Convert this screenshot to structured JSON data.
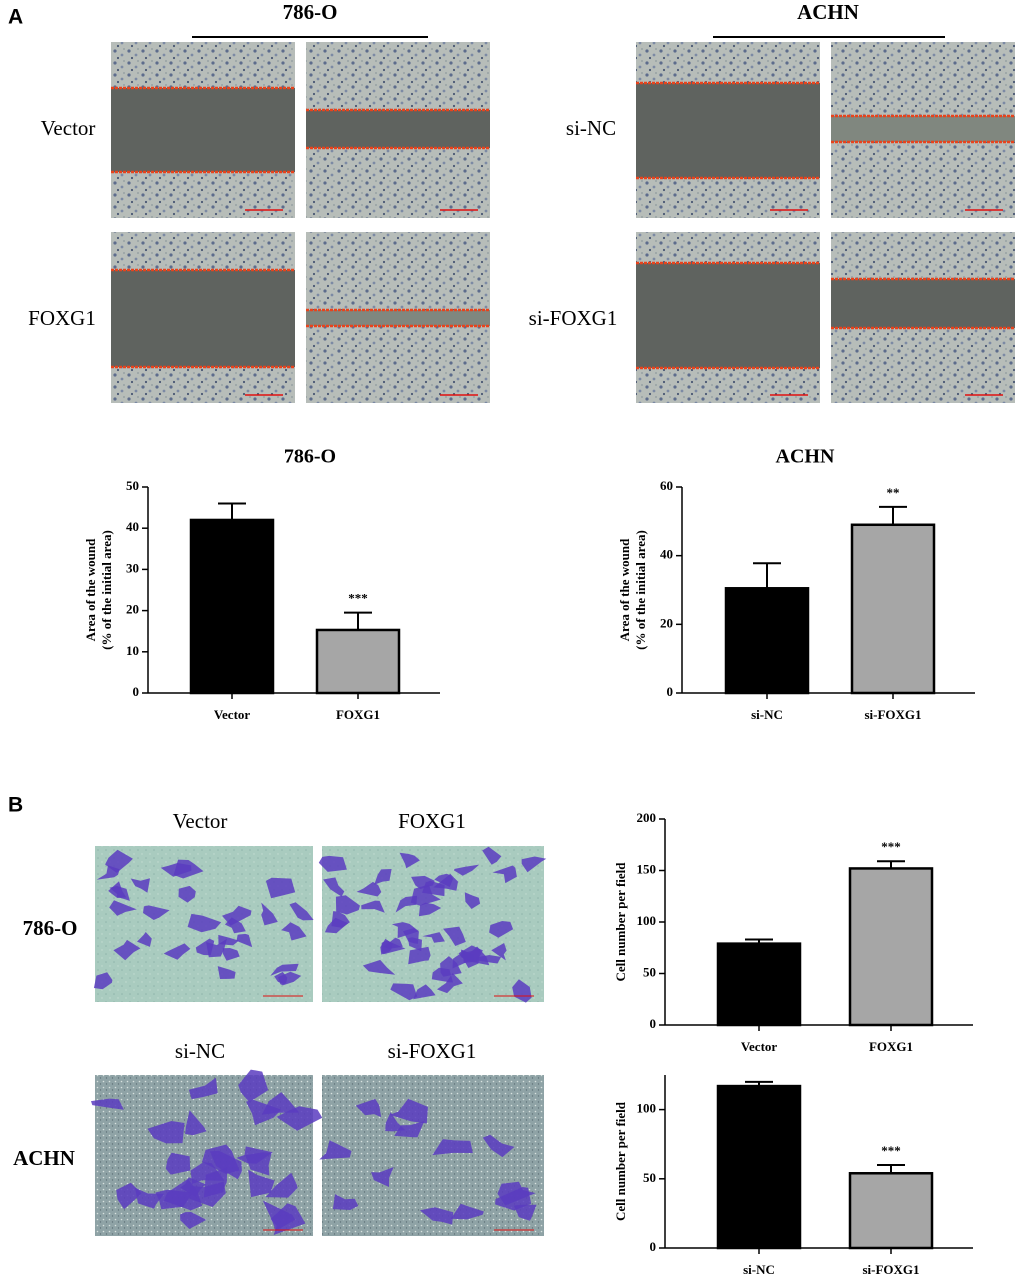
{
  "figure": {
    "panel_a": "A",
    "panel_b": "B",
    "a_headers": [
      "786-O",
      "ACHN"
    ],
    "a_rows": [
      "Vector",
      "FOXG1",
      "si-NC",
      "si-FOXG1"
    ],
    "b_columns": [
      "Vector",
      "FOXG1",
      "si-NC",
      "si-FOXG1"
    ],
    "b_rows": [
      "786-O",
      "ACHN"
    ]
  },
  "chart_data": [
    {
      "type": "bar",
      "title": "786-O",
      "ylabel": [
        "Area of the wound",
        "(% of the initial area)"
      ],
      "categories": [
        "Vector",
        "FOXG1"
      ],
      "values": [
        42,
        15.3
      ],
      "errors": [
        4,
        4.2
      ],
      "colors": [
        "#000000",
        "#a6a6a6"
      ],
      "annotations": [
        {
          "category": "FOXG1",
          "text": "***"
        }
      ],
      "ylim": [
        0,
        50
      ],
      "yticks": [
        0,
        10,
        20,
        30,
        40,
        50
      ]
    },
    {
      "type": "bar",
      "title": "ACHN",
      "ylabel": [
        "Area of the wound",
        "(% of the initial area)"
      ],
      "categories": [
        "si-NC",
        "si-FOXG1"
      ],
      "values": [
        30.5,
        49
      ],
      "errors": [
        7.3,
        5.2
      ],
      "colors": [
        "#000000",
        "#a6a6a6"
      ],
      "annotations": [
        {
          "category": "si-FOXG1",
          "text": "**"
        }
      ],
      "ylim": [
        0,
        60
      ],
      "yticks": [
        0,
        20,
        40,
        60
      ]
    },
    {
      "type": "bar",
      "ylabel": [
        "Cell number per field"
      ],
      "categories": [
        "Vector",
        "FOXG1"
      ],
      "values": [
        79,
        152
      ],
      "errors": [
        4,
        7
      ],
      "colors": [
        "#000000",
        "#a6a6a6"
      ],
      "annotations": [
        {
          "category": "FOXG1",
          "text": "***"
        }
      ],
      "ylim": [
        0,
        200
      ],
      "yticks": [
        0,
        50,
        100,
        150,
        200
      ]
    },
    {
      "type": "bar",
      "ylabel": [
        "Cell number per field"
      ],
      "categories": [
        "si-NC",
        "si-FOXG1"
      ],
      "values": [
        117,
        54
      ],
      "errors": [
        3,
        6
      ],
      "colors": [
        "#000000",
        "#a6a6a6"
      ],
      "annotations": [
        {
          "category": "si-FOXG1",
          "text": "***"
        }
      ],
      "ylim": [
        0,
        125
      ],
      "yticks": [
        0,
        50,
        100
      ]
    }
  ]
}
